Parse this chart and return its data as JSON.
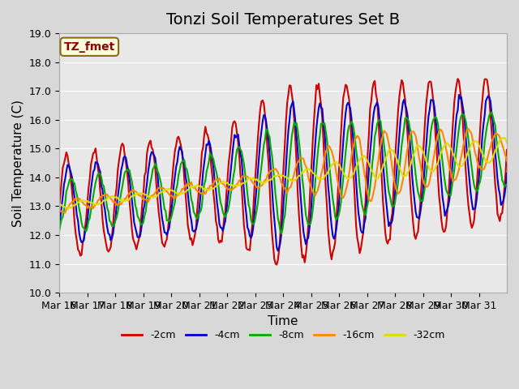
{
  "title": "Tonzi Soil Temperatures Set B",
  "xlabel": "Time",
  "ylabel": "Soil Temperature (C)",
  "annotation": "TZ_fmet",
  "ylim": [
    10.0,
    19.0
  ],
  "yticks": [
    10.0,
    11.0,
    12.0,
    13.0,
    14.0,
    15.0,
    16.0,
    17.0,
    18.0,
    19.0
  ],
  "xtick_labels": [
    "Mar 16",
    "Mar 17",
    "Mar 18",
    "Mar 19",
    "Mar 20",
    "Mar 21",
    "Mar 22",
    "Mar 23",
    "Mar 24",
    "Mar 25",
    "Mar 26",
    "Mar 27",
    "Mar 28",
    "Mar 29",
    "Mar 30",
    "Mar 31"
  ],
  "colors": {
    "-2cm": "#cc0000",
    "-4cm": "#0000cc",
    "-8cm": "#00aa00",
    "-16cm": "#ff8800",
    "-32cm": "#dddd00"
  },
  "bg_color": "#d8d8d8",
  "plot_bg_color": "#e8e8e8",
  "title_fontsize": 14,
  "axis_label_fontsize": 11,
  "tick_fontsize": 9,
  "linewidth": 1.5,
  "n_days": 16
}
